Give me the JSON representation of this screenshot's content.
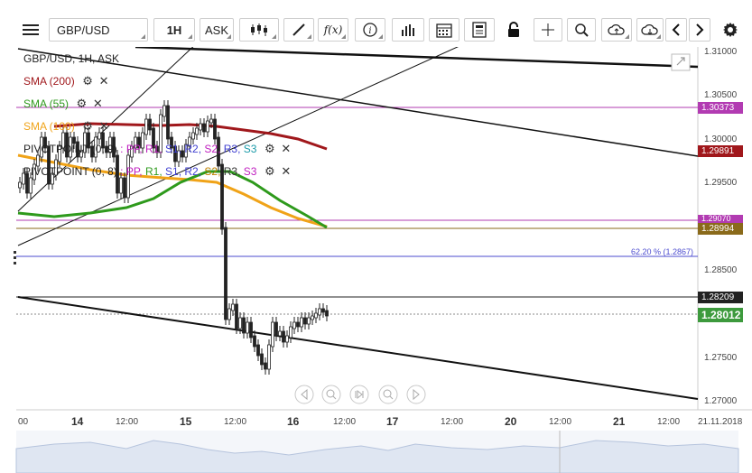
{
  "toolbar": {
    "symbol": "GBP/USD",
    "timeframe": "1H",
    "price_type": "ASK",
    "fx_label": "f(x)",
    "icons": [
      "menu-icon",
      "candlestick-icon",
      "draw-line-icon",
      "function-icon",
      "info-icon",
      "volume-bars-icon",
      "calendar-icon",
      "news-icon",
      "lock-icon",
      "crosshair-icon",
      "zoom-icon",
      "cloud-upload-icon",
      "cloud-download-icon",
      "arrow-left-icon",
      "arrow-right-icon",
      "gear-icon"
    ]
  },
  "legend": {
    "instrument": "GBP/USD, 1H, ASK",
    "sma200": "SMA (200)",
    "sma55": "SMA (55)",
    "sma100": "SMA (100)",
    "pivot1_name": "PIVOTPOINT (0, 9)",
    "pivot2_name": "PIVOTPOINT (0, 8)",
    "pivot_sep": ":",
    "pivot_items": [
      "PP,",
      "R1,",
      "S1,",
      "R2,",
      "S2,",
      "R3,",
      "S3"
    ]
  },
  "colors": {
    "sma200": "#a0171b",
    "sma55": "#2e9a1c",
    "sma100": "#f0a318",
    "pp": "#c020c0",
    "r1": "#2e9a1c",
    "s1": "#3f3fd0",
    "r2": "#3f3fd0",
    "s2": "#c08000",
    "r3": "#333333",
    "s3": "#c020c0",
    "last_price": "#3d9a3d"
  },
  "price_axis": {
    "ticks": [
      "1.31000",
      "1.30500",
      "1.30000",
      "1.29500",
      "1.28500",
      "1.27500",
      "1.27000"
    ],
    "tags": [
      {
        "value": "1.30373",
        "color": "#b23bb2"
      },
      {
        "value": "1.29891",
        "color": "#a0171b"
      },
      {
        "value": "1.29070",
        "color": "#b23bb2"
      },
      {
        "value": "1.28994",
        "color": "#8a6a1a"
      },
      {
        "value": "1.28209",
        "color": "#222222"
      },
      {
        "value": "1.28012",
        "color": "#3d9a3d"
      }
    ]
  },
  "fib_label": "62.20 % (1.2867)",
  "time_axis": {
    "ticks": [
      "00",
      "14",
      "12:00",
      "15",
      "12:00",
      "16",
      "12:00",
      "17",
      "12:00",
      "20",
      "12:00",
      "21",
      "12:00",
      "21.11.2018"
    ]
  }
}
